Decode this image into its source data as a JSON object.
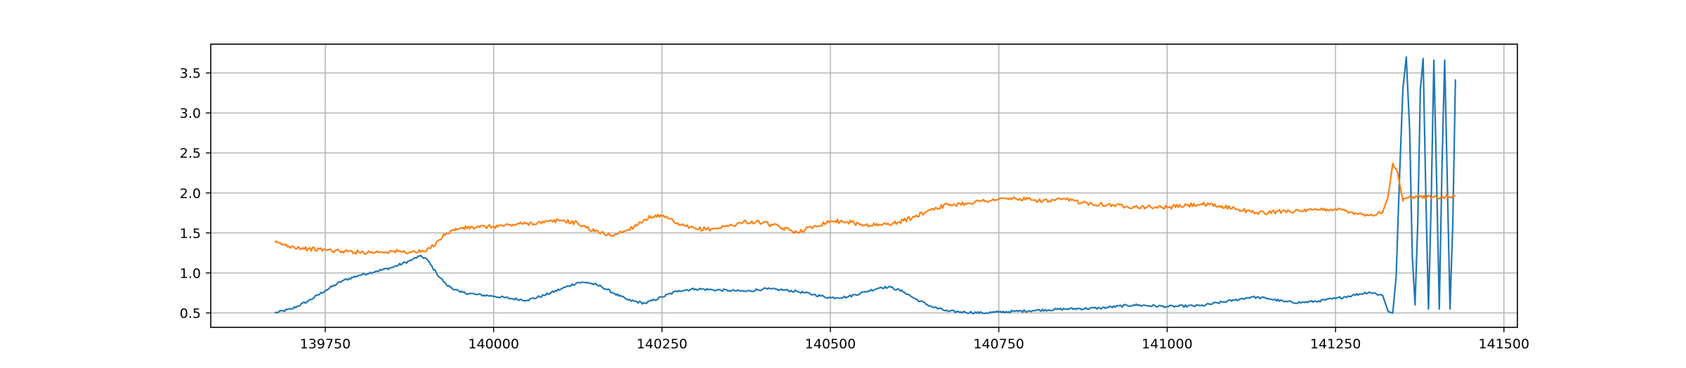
{
  "chart_data": {
    "type": "line",
    "title": "",
    "xlabel": "",
    "ylabel": "",
    "xlim": [
      139580,
      141520
    ],
    "ylim": [
      0.32,
      3.86
    ],
    "x_ticks": [
      139750,
      140000,
      140250,
      140500,
      140750,
      141000,
      141250,
      141500
    ],
    "y_ticks": [
      0.5,
      1.0,
      1.5,
      2.0,
      2.5,
      3.0,
      3.5
    ],
    "x_tick_labels": [
      "139750",
      "140000",
      "140250",
      "140500",
      "140750",
      "141000",
      "141250",
      "141500"
    ],
    "y_tick_labels": [
      "0.5",
      "1.0",
      "1.5",
      "2.0",
      "2.5",
      "3.0",
      "3.5"
    ],
    "grid": true,
    "legend": "none",
    "series": [
      {
        "color": "#1f77b4",
        "x": [
          139675,
          139700,
          139725,
          139750,
          139775,
          139800,
          139825,
          139850,
          139875,
          139890,
          139900,
          139915,
          139930,
          139950,
          139975,
          140000,
          140025,
          140050,
          140075,
          140100,
          140125,
          140140,
          140160,
          140180,
          140200,
          140225,
          140250,
          140275,
          140300,
          140325,
          140350,
          140375,
          140400,
          140425,
          140450,
          140475,
          140500,
          140525,
          140550,
          140575,
          140590,
          140610,
          140625,
          140650,
          140675,
          140700,
          140725,
          140750,
          140775,
          140800,
          140850,
          140900,
          140950,
          141000,
          141050,
          141100,
          141125,
          141150,
          141175,
          141200,
          141225,
          141250,
          141275,
          141300,
          141320,
          141328,
          141335,
          141340,
          141345,
          141350,
          141355,
          141360,
          141364,
          141368,
          141372,
          141376,
          141380,
          141384,
          141388,
          141392,
          141396,
          141400,
          141404,
          141408,
          141412,
          141416,
          141420,
          141424,
          141428
        ],
        "values": [
          0.5,
          0.55,
          0.65,
          0.78,
          0.9,
          0.97,
          1.02,
          1.07,
          1.15,
          1.21,
          1.18,
          1.0,
          0.85,
          0.76,
          0.73,
          0.71,
          0.68,
          0.66,
          0.72,
          0.8,
          0.88,
          0.88,
          0.83,
          0.74,
          0.66,
          0.62,
          0.7,
          0.78,
          0.8,
          0.79,
          0.78,
          0.77,
          0.8,
          0.79,
          0.77,
          0.73,
          0.69,
          0.7,
          0.76,
          0.82,
          0.82,
          0.76,
          0.68,
          0.58,
          0.52,
          0.51,
          0.5,
          0.51,
          0.52,
          0.53,
          0.55,
          0.56,
          0.6,
          0.58,
          0.59,
          0.66,
          0.7,
          0.68,
          0.64,
          0.63,
          0.65,
          0.68,
          0.72,
          0.76,
          0.72,
          0.52,
          0.5,
          0.95,
          2.2,
          3.3,
          3.7,
          2.8,
          1.2,
          0.6,
          1.6,
          3.3,
          3.68,
          2.0,
          0.55,
          1.9,
          3.66,
          2.2,
          0.55,
          2.3,
          3.66,
          2.1,
          0.55,
          1.6,
          3.42
        ]
      },
      {
        "color": "#ff7f0e",
        "x": [
          139675,
          139700,
          139725,
          139750,
          139775,
          139800,
          139825,
          139850,
          139875,
          139900,
          139915,
          139930,
          139950,
          139975,
          140000,
          140025,
          140050,
          140075,
          140100,
          140125,
          140150,
          140175,
          140200,
          140225,
          140240,
          140260,
          140275,
          140300,
          140325,
          140350,
          140375,
          140400,
          140425,
          140450,
          140475,
          140500,
          140525,
          140550,
          140575,
          140600,
          140625,
          140650,
          140675,
          140700,
          140725,
          140750,
          140775,
          140800,
          140825,
          140850,
          140875,
          140900,
          140950,
          141000,
          141050,
          141100,
          141125,
          141150,
          141175,
          141200,
          141225,
          141250,
          141275,
          141300,
          141320,
          141328,
          141335,
          141342,
          141350,
          141358,
          141365,
          141375,
          141400,
          141428
        ],
        "values": [
          1.38,
          1.33,
          1.3,
          1.29,
          1.27,
          1.26,
          1.26,
          1.27,
          1.26,
          1.27,
          1.38,
          1.5,
          1.56,
          1.57,
          1.58,
          1.6,
          1.62,
          1.63,
          1.66,
          1.62,
          1.52,
          1.47,
          1.54,
          1.67,
          1.72,
          1.68,
          1.6,
          1.55,
          1.55,
          1.59,
          1.64,
          1.63,
          1.57,
          1.51,
          1.58,
          1.65,
          1.64,
          1.6,
          1.6,
          1.63,
          1.7,
          1.8,
          1.85,
          1.87,
          1.9,
          1.92,
          1.93,
          1.91,
          1.9,
          1.92,
          1.88,
          1.86,
          1.83,
          1.82,
          1.86,
          1.81,
          1.76,
          1.75,
          1.78,
          1.77,
          1.79,
          1.8,
          1.76,
          1.72,
          1.76,
          1.95,
          2.37,
          2.26,
          1.9,
          1.94,
          1.95,
          1.95,
          1.95,
          1.96
        ]
      }
    ]
  }
}
